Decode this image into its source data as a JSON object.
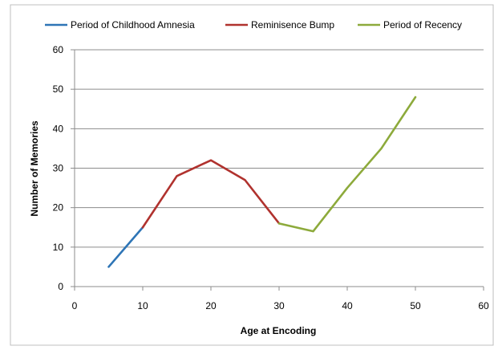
{
  "chart_data": {
    "type": "line",
    "title": "",
    "xlabel": "Age at Encoding",
    "ylabel": "Number of Memories",
    "xlim": [
      0,
      60
    ],
    "ylim": [
      0,
      60
    ],
    "xticks": [
      "0",
      "10",
      "20",
      "30",
      "40",
      "50",
      "60"
    ],
    "yticks": [
      "0",
      "10",
      "20",
      "30",
      "40",
      "50",
      "60"
    ],
    "grid": "horizontal",
    "legend_position": "top",
    "series": [
      {
        "name": "Period of Childhood  Amnesia",
        "color": "#2E75B6",
        "x": [
          5,
          10
        ],
        "y": [
          5,
          15
        ]
      },
      {
        "name": "Reminisence Bump",
        "color": "#B0322E",
        "x": [
          10,
          15,
          20,
          25,
          30
        ],
        "y": [
          15,
          28,
          32,
          27,
          16
        ]
      },
      {
        "name": "Period of Recency",
        "color": "#8DAA3B",
        "x": [
          30,
          35,
          40,
          45,
          50
        ],
        "y": [
          16,
          14,
          25,
          35,
          48
        ]
      }
    ]
  }
}
